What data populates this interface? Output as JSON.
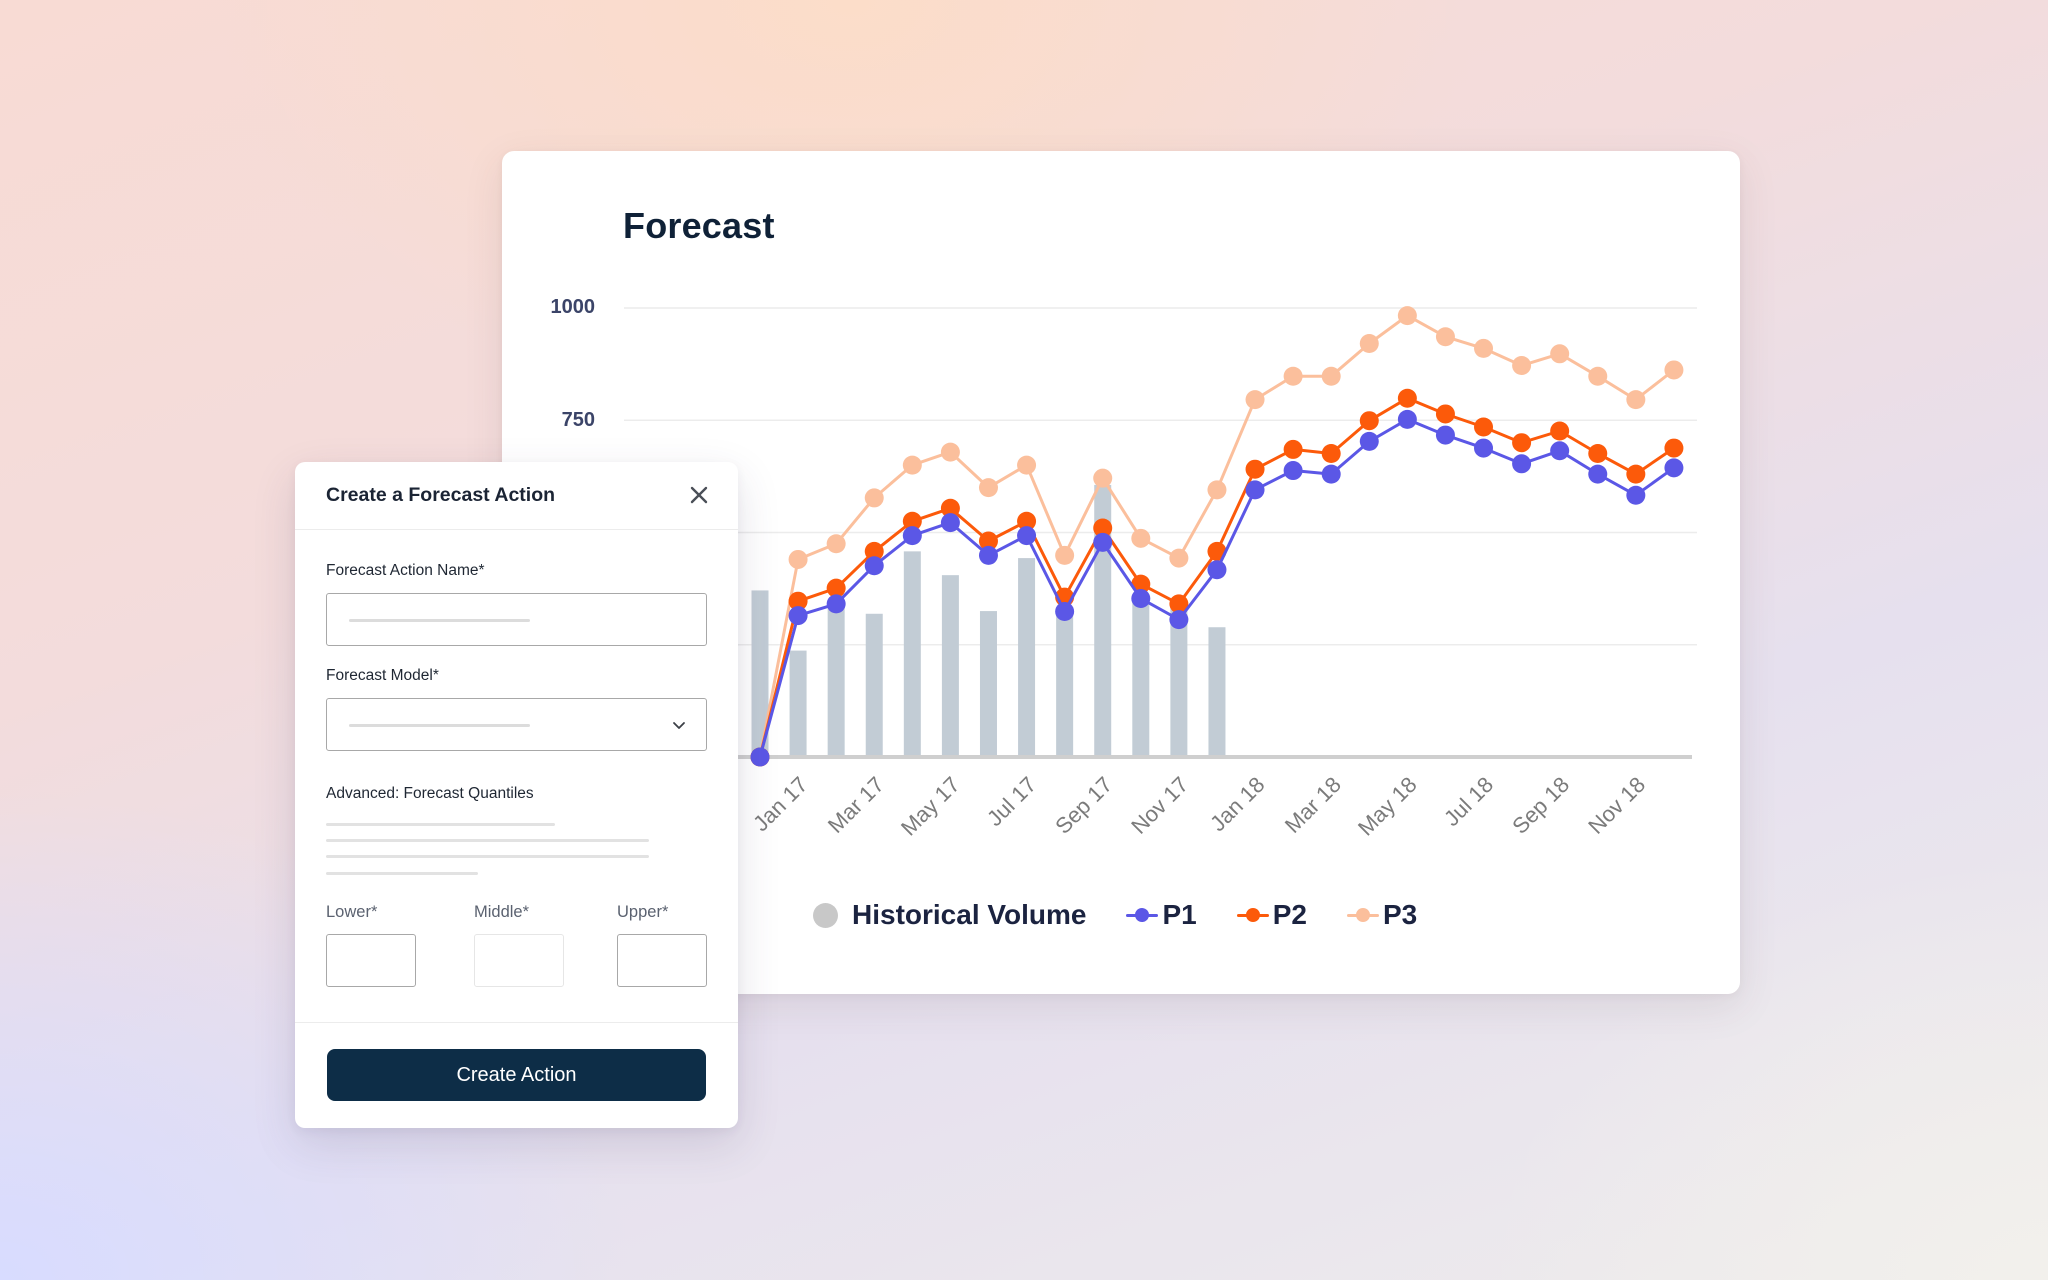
{
  "chart_card": {
    "title": "Forecast"
  },
  "dialog": {
    "title": "Create a Forecast Action",
    "close_icon": "close-icon",
    "fields": {
      "action_name": {
        "label": "Forecast Action Name*",
        "value": "",
        "placeholder": ""
      },
      "model": {
        "label": "Forecast Model*",
        "value": "",
        "placeholder": "",
        "icon": "chevron-down-icon"
      },
      "advanced_heading": "Advanced: Forecast Quantiles",
      "lower": {
        "label": "Lower*",
        "value": ""
      },
      "middle": {
        "label": "Middle*",
        "value": ""
      },
      "upper": {
        "label": "Upper*",
        "value": ""
      }
    },
    "submit_label": "Create Action"
  },
  "colors": {
    "historical": "#c2ccd5",
    "p1": "#5b57e6",
    "p2": "#fc5a0a",
    "p3": "#fbbf9c",
    "primary_button": "#0d2d47",
    "title_text": "#0f2137"
  },
  "chart_data": {
    "type": "line",
    "title": "Forecast",
    "xlabel": "",
    "ylabel": "",
    "ylim": [
      0,
      1000
    ],
    "yticks_visible": [
      "1000",
      "750"
    ],
    "ytick_values": [
      0,
      250,
      500,
      750,
      1000
    ],
    "grid": true,
    "legend_position": "bottom",
    "x": [
      "Dec 16",
      "Jan 17",
      "Feb 17",
      "Mar 17",
      "Apr 17",
      "May 17",
      "Jun 17",
      "Jul 17",
      "Aug 17",
      "Sep 17",
      "Oct 17",
      "Nov 17",
      "Dec 17",
      "Jan 18",
      "Feb 18",
      "Mar 18",
      "Apr 18",
      "May 18",
      "Jun 18",
      "Jul 18",
      "Aug 18",
      "Sep 18",
      "Oct 18",
      "Nov 18",
      "Dec 18"
    ],
    "xtick_labels": [
      "Jan 17",
      "Mar 17",
      "May 17",
      "Jul 17",
      "Sep 17",
      "Nov 17",
      "Jan 18",
      "Mar 18",
      "May 18",
      "Jul 18",
      "Sep 18",
      "Nov 18"
    ],
    "series": [
      {
        "name": "Historical Volume",
        "type": "bar",
        "color": "#c2ccd5",
        "values": [
          371,
          237,
          346,
          319,
          458,
          405,
          325,
          443,
          334,
          606,
          350,
          335,
          289,
          null,
          null,
          null,
          null,
          null,
          null,
          null,
          null,
          null,
          null,
          null,
          null
        ]
      },
      {
        "name": "P1",
        "type": "line",
        "color": "#5b57e6",
        "values": [
          0,
          315,
          341,
          426,
          493,
          522,
          449,
          493,
          324,
          478,
          353,
          306,
          417,
          595,
          638,
          630,
          703,
          752,
          717,
          688,
          653,
          682,
          630,
          583,
          644
        ]
      },
      {
        "name": "P2",
        "type": "line",
        "color": "#fc5a0a",
        "values": [
          0,
          347,
          376,
          458,
          525,
          554,
          481,
          525,
          356,
          510,
          385,
          341,
          458,
          641,
          685,
          676,
          749,
          799,
          764,
          735,
          700,
          726,
          676,
          630,
          688
        ]
      },
      {
        "name": "P3",
        "type": "line",
        "color": "#fbbf9c",
        "values": [
          0,
          440,
          475,
          577,
          650,
          679,
          600,
          650,
          449,
          621,
          487,
          443,
          595,
          796,
          848,
          848,
          921,
          983,
          936,
          910,
          872,
          898,
          848,
          796,
          862
        ]
      }
    ]
  },
  "legend": {
    "items": [
      {
        "label": "Historical Volume",
        "marker": "circle",
        "color": "#c8c8c8"
      },
      {
        "label": "P1",
        "marker": "line-dot",
        "color": "#5b57e6"
      },
      {
        "label": "P2",
        "marker": "line-dot",
        "color": "#fc5a0a"
      },
      {
        "label": "P3",
        "marker": "line-dot",
        "color": "#fbbf9c"
      }
    ]
  }
}
